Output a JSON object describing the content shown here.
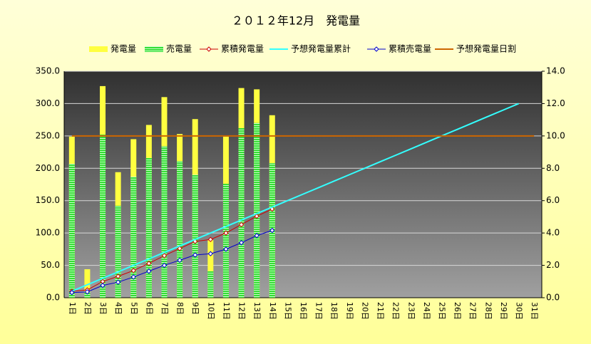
{
  "chart_data": {
    "type": "combo",
    "title": "２０１２年12月　発電量",
    "categories": [
      "1日",
      "2日",
      "3日",
      "4日",
      "5日",
      "6日",
      "7日",
      "8日",
      "9日",
      "10日",
      "11日",
      "12日",
      "13日",
      "14日",
      "15日",
      "16日",
      "17日",
      "18日",
      "19日",
      "20日",
      "21日",
      "22日",
      "23日",
      "24日",
      "25日",
      "26日",
      "27日",
      "28日",
      "29日",
      "30日",
      "31日"
    ],
    "series": [
      {
        "name": "発電量",
        "type": "bar",
        "color": "#ffff40",
        "values": [
          249,
          44,
          327,
          194,
          245,
          267,
          310,
          253,
          276,
          89,
          249,
          324,
          322,
          282,
          null,
          null,
          null,
          null,
          null,
          null,
          null,
          null,
          null,
          null,
          null,
          null,
          null,
          null,
          null,
          null,
          null
        ]
      },
      {
        "name": "売電量",
        "type": "bar",
        "color": "#33dd33",
        "values": [
          207,
          9,
          252,
          142,
          187,
          216,
          234,
          211,
          190,
          41,
          176,
          262,
          270,
          208,
          null,
          null,
          null,
          null,
          null,
          null,
          null,
          null,
          null,
          null,
          null,
          null,
          null,
          null,
          null,
          null,
          null
        ]
      },
      {
        "name": "累積発電量",
        "type": "line",
        "marker": "diamond",
        "color": "#cc0000",
        "values": [
          10,
          12,
          25,
          33,
          42,
          53,
          65,
          76,
          87,
          90,
          100,
          113,
          126,
          137,
          null,
          null,
          null,
          null,
          null,
          null,
          null,
          null,
          null,
          null,
          null,
          null,
          null,
          null,
          null,
          null,
          null
        ]
      },
      {
        "name": "予想発電量累計",
        "type": "line",
        "color": "#33ffff",
        "values": [
          10,
          20,
          30,
          40,
          50,
          60,
          70,
          80,
          90,
          100,
          110,
          120,
          130,
          140,
          150,
          160,
          170,
          180,
          190,
          200,
          210,
          220,
          230,
          240,
          250,
          260,
          270,
          280,
          290,
          300,
          null
        ]
      },
      {
        "name": "累積売電量",
        "type": "line",
        "marker": "diamond",
        "color": "#0000cc",
        "values": [
          8,
          9,
          19,
          24,
          32,
          41,
          50,
          58,
          66,
          68,
          75,
          85,
          96,
          104,
          null,
          null,
          null,
          null,
          null,
          null,
          null,
          null,
          null,
          null,
          null,
          null,
          null,
          null,
          null,
          null,
          null
        ]
      },
      {
        "name": "予想発電量日割",
        "type": "line",
        "color": "#cc6600",
        "values": [
          250,
          250,
          250,
          250,
          250,
          250,
          250,
          250,
          250,
          250,
          250,
          250,
          250,
          250,
          250,
          250,
          250,
          250,
          250,
          250,
          250,
          250,
          250,
          250,
          250,
          250,
          250,
          250,
          250,
          250,
          250
        ]
      }
    ],
    "ylim": [
      0,
      350
    ],
    "yticks": [
      {
        "value": 0,
        "label": "0.0"
      },
      {
        "value": 50,
        "label": "50.0"
      },
      {
        "value": 100,
        "label": "100.0"
      },
      {
        "value": 150,
        "label": "150.0"
      },
      {
        "value": 200,
        "label": "200.0"
      },
      {
        "value": 250,
        "label": "250.0"
      },
      {
        "value": 300,
        "label": "300.0"
      },
      {
        "value": 350,
        "label": "350.0"
      }
    ],
    "y2lim": [
      0,
      14
    ],
    "y2ticks": [
      {
        "value": 0,
        "label": "0.0"
      },
      {
        "value": 2,
        "label": "2.0"
      },
      {
        "value": 4,
        "label": "4.0"
      },
      {
        "value": 6,
        "label": "6.0"
      },
      {
        "value": 8,
        "label": "8.0"
      },
      {
        "value": 10,
        "label": "10.0"
      },
      {
        "value": 12,
        "label": "12.0"
      },
      {
        "value": 14,
        "label": "14.0"
      }
    ],
    "grid": true,
    "legend": "top"
  }
}
